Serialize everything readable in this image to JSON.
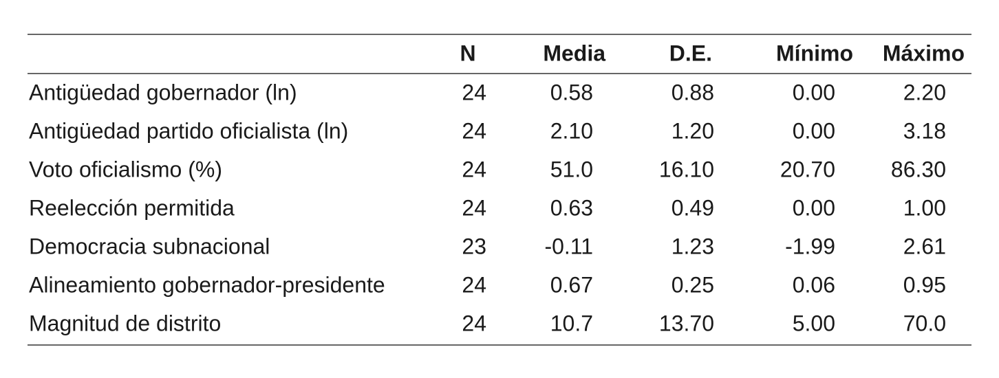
{
  "table": {
    "columns": [
      "N",
      "Media",
      "D.E.",
      "Mínimo",
      "Máximo"
    ],
    "rows": [
      [
        "Antigüedad gobernador (ln)",
        "24",
        "0.58",
        "0.88",
        "0.00",
        "2.20"
      ],
      [
        "Antigüedad partido oficialista (ln)",
        "24",
        "2.10",
        "1.20",
        "0.00",
        "3.18"
      ],
      [
        "Voto oficialismo (%)",
        "24",
        "51.0",
        "16.10",
        "20.70",
        "86.30"
      ],
      [
        "Reelección permitida",
        "24",
        "0.63",
        "0.49",
        "0.00",
        "1.00"
      ],
      [
        "Democracia subnacional",
        "23",
        "-0.11",
        "1.23",
        "-1.99",
        "2.61"
      ],
      [
        "Alineamiento gobernador-presidente",
        "24",
        "0.67",
        "0.25",
        "0.06",
        "0.95"
      ],
      [
        "Magnitud de distrito",
        "24",
        "10.7",
        "13.70",
        "5.00",
        "70.0"
      ]
    ]
  }
}
